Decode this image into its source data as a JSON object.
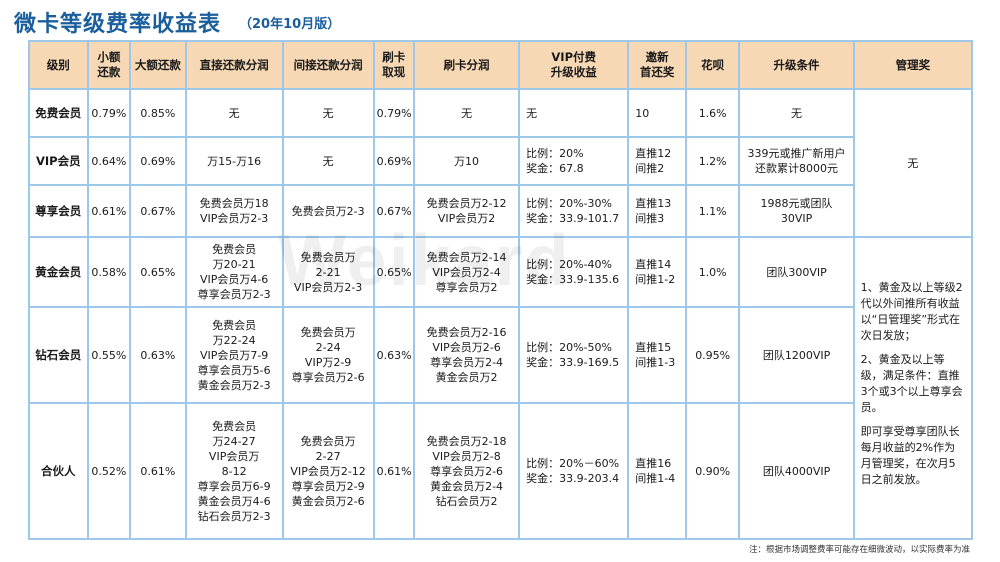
{
  "title": "微卡等级费率收益表",
  "subtitle": "（20年10月版）",
  "watermark": "Weikard",
  "note": "注：根据市场调整费率可能存在细微波动，以实际费率为准",
  "headers": [
    [
      "级别"
    ],
    [
      "小额",
      "还款"
    ],
    [
      "大额还款"
    ],
    [
      "直接还款分润"
    ],
    [
      "间接还款分润"
    ],
    [
      "刷卡",
      "取现"
    ],
    [
      "刷卡分润"
    ],
    [
      "VIP付费",
      "升级收益"
    ],
    [
      "邀新",
      "首还奖"
    ],
    [
      "花呗"
    ],
    [
      "升级条件"
    ],
    [
      "管理奖"
    ]
  ],
  "rows": [
    {
      "level": "免费会员",
      "small": "0.79%",
      "large": "0.85%",
      "direct": [
        "无"
      ],
      "indirect": [
        "无"
      ],
      "cash": "0.79%",
      "card": [
        "无"
      ],
      "vip": [
        "无"
      ],
      "invite": [
        "10"
      ],
      "huabei": "1.6%",
      "upgrade": [
        "无"
      ]
    },
    {
      "level": "VIP会员",
      "small": "0.64%",
      "large": "0.69%",
      "direct": [
        "万15-万16"
      ],
      "indirect": [
        "无"
      ],
      "cash": "0.69%",
      "card": [
        "万10"
      ],
      "vip": [
        "比例：20%",
        "奖金：67.8"
      ],
      "invite": [
        "直推12",
        "间推2"
      ],
      "huabei": "1.2%",
      "upgrade": [
        "339元或推广新用户",
        "还款累计8000元"
      ]
    },
    {
      "level": "尊享会员",
      "small": "0.61%",
      "large": "0.67%",
      "direct": [
        "免费会员万18",
        "VIP会员万2-3"
      ],
      "indirect": [
        "免费会员万2-3"
      ],
      "cash": "0.67%",
      "card": [
        "免费会员万2-12",
        "VIP会员万2"
      ],
      "vip": [
        "比例：20%-30%",
        "奖金：33.9-101.7"
      ],
      "invite": [
        "直推13",
        "间推3"
      ],
      "huabei": "1.1%",
      "upgrade": [
        "1988元或团队",
        "30VIP"
      ]
    },
    {
      "level": "黄金会员",
      "small": "0.58%",
      "large": "0.65%",
      "direct": [
        "免费会员",
        "万20-21",
        "VIP会员万4-6",
        "尊享会员万2-3"
      ],
      "indirect": [
        "免费会员万",
        "2-21",
        "VIP会员万2-3"
      ],
      "cash": "0.65%",
      "card": [
        "免费会员万2-14",
        "VIP会员万2-4",
        "尊享会员万2"
      ],
      "vip": [
        "比例：20%-40%",
        "奖金：33.9-135.6"
      ],
      "invite": [
        "直推14",
        "间推1-2"
      ],
      "huabei": "1.0%",
      "upgrade": [
        "团队300VIP"
      ]
    },
    {
      "level": "钻石会员",
      "small": "0.55%",
      "large": "0.63%",
      "direct": [
        "免费会员",
        "万22-24",
        "VIP会员万7-9",
        "尊享会员万5-6",
        "黄金会员万2-3"
      ],
      "indirect": [
        "免费会员万",
        "2-24",
        "VIP万2-9",
        "尊享会员万2-6"
      ],
      "cash": "0.63%",
      "card": [
        "免费会员万2-16",
        "VIP会员万2-6",
        "尊享会员万2-4",
        "黄金会员万2"
      ],
      "vip": [
        "比例：20%-50%",
        "奖金：33.9-169.5"
      ],
      "invite": [
        "直推15",
        "间推1-3"
      ],
      "huabei": "0.95%",
      "upgrade": [
        "团队1200VIP"
      ]
    },
    {
      "level": "合伙人",
      "small": "0.52%",
      "large": "0.61%",
      "direct": [
        "免费会员",
        "万24-27",
        "VIP会员万",
        "8-12",
        "尊享会员万6-9",
        "黄金会员万4-6",
        "钻石会员万2-3"
      ],
      "indirect": [
        "免费会员万",
        "2-27",
        "VIP会员万2-12",
        "尊享会员万2-9",
        "黄金会员万2-6"
      ],
      "cash": "0.61%",
      "card": [
        "免费会员万2-18",
        "VIP会员万2-8",
        "尊享会员万2-6",
        "黄金会员万2-4",
        "钻石会员万2"
      ],
      "vip": [
        "比例：20%－60%",
        "奖金：33.9-203.4"
      ],
      "invite": [
        "直推16",
        "间推1-4"
      ],
      "huabei": "0.90%",
      "upgrade": [
        "团队4000VIP"
      ]
    }
  ],
  "management": {
    "top": "无",
    "bottom": [
      "1、黄金及以上等级2代以外间推所有收益以“日管理奖”形式在次日发放；",
      "2、黄金及以上等级，满足条件：直推3个或3个以上尊享会员。",
      "即可享受尊享团队长每月收益的2%作为月管理奖，在次月5日之前发放。"
    ]
  }
}
